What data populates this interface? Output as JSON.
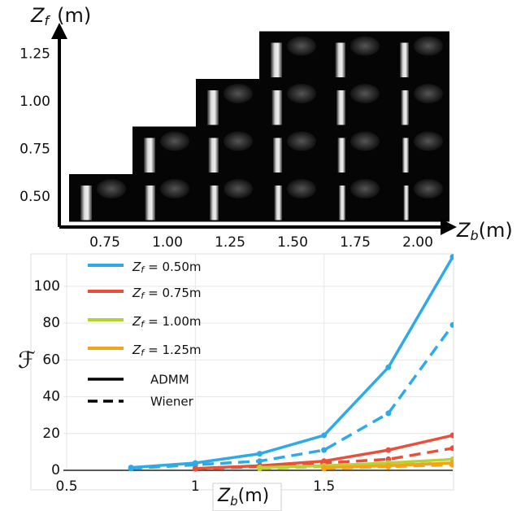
{
  "image_grid": {
    "y_label": {
      "symbol": "Z",
      "subscript": "f",
      "unit": "(m)"
    },
    "x_label": {
      "symbol": "Z",
      "subscript": "b",
      "unit": "(m)"
    },
    "rows": [
      "0.50",
      "0.75",
      "1.00",
      "1.25"
    ],
    "cols": [
      "0.75",
      "1.00",
      "1.25",
      "1.50",
      "1.75",
      "2.00"
    ]
  },
  "chart_data": {
    "type": "line",
    "y_label": "ℱ",
    "x_label": {
      "symbol": "Z",
      "subscript": "b",
      "unit": "(m)"
    },
    "x": [
      0.75,
      1,
      1.25,
      1.5,
      1.75,
      2.0
    ],
    "xlim": [
      0.5,
      2.0
    ],
    "xticks": [
      0.5,
      1,
      1.5
    ],
    "ylim": [
      0,
      115
    ],
    "yticks": [
      0,
      20,
      40,
      60,
      80,
      100
    ],
    "grid": true,
    "legend_symbol": "Z",
    "legend_subscript": "f",
    "solid_label": "ADMM",
    "dashed_label": "Wiener",
    "series": [
      {
        "name": "= 0.50m",
        "color": "#2eaae8",
        "admm": [
          1.5,
          4,
          9,
          19,
          56,
          116
        ],
        "wiener": [
          1,
          3,
          5,
          11,
          31,
          79
        ]
      },
      {
        "name": "= 0.75m",
        "color": "#e8503a",
        "admm": [
          null,
          1,
          2.5,
          5,
          11,
          19
        ],
        "wiener": [
          null,
          0.8,
          2,
          4,
          6,
          12
        ]
      },
      {
        "name": "= 1.00m",
        "color": "#b5d334",
        "admm": [
          null,
          null,
          1.5,
          2.5,
          4,
          6
        ],
        "wiener": [
          null,
          null,
          1,
          2,
          3,
          4
        ]
      },
      {
        "name": "= 1.25m",
        "color": "#f5a31a",
        "admm": [
          null,
          null,
          null,
          1.5,
          2.5,
          4
        ],
        "wiener": [
          null,
          null,
          null,
          1,
          2,
          3
        ]
      }
    ]
  }
}
